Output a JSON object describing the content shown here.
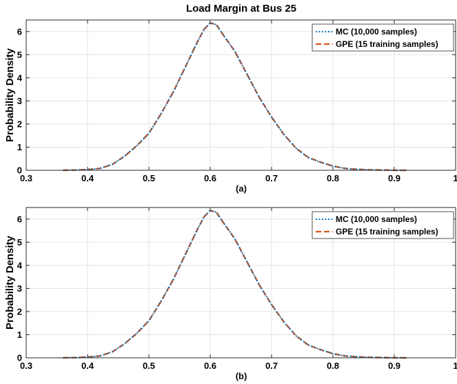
{
  "colors": {
    "mc": "#0072BD",
    "gpe": "#D95319",
    "grid": "#e3e3e3",
    "axis": "#262626"
  },
  "chart_data": [
    {
      "type": "line",
      "title": "Load Margin at Bus 25",
      "ylabel": "Probability Density",
      "xlabel": "(a)",
      "xlim": [
        0.3,
        1.0
      ],
      "ylim": [
        0,
        6.5
      ],
      "xticks": [
        "0.3",
        "0.4",
        "0.5",
        "0.6",
        "0.7",
        "0.8",
        "0.9",
        "1"
      ],
      "yticks": [
        "0",
        "1",
        "2",
        "3",
        "4",
        "5",
        "6"
      ],
      "grid": true,
      "legend_position": "top-right",
      "series": [
        {
          "name": "MC (10,000 samples)",
          "style": "dotted",
          "x": [
            0.36,
            0.38,
            0.4,
            0.42,
            0.44,
            0.46,
            0.48,
            0.5,
            0.52,
            0.54,
            0.56,
            0.58,
            0.59,
            0.6,
            0.61,
            0.62,
            0.64,
            0.66,
            0.68,
            0.7,
            0.72,
            0.74,
            0.76,
            0.78,
            0.8,
            0.82,
            0.84,
            0.86,
            0.88,
            0.9,
            0.92
          ],
          "y": [
            0.0,
            0.01,
            0.03,
            0.08,
            0.25,
            0.6,
            1.05,
            1.6,
            2.45,
            3.4,
            4.5,
            5.6,
            6.1,
            6.37,
            6.3,
            5.9,
            5.15,
            4.15,
            3.15,
            2.3,
            1.55,
            0.95,
            0.55,
            0.35,
            0.18,
            0.08,
            0.04,
            0.02,
            0.01,
            0.0,
            0.0
          ]
        },
        {
          "name": "GPE (15 training samples)",
          "style": "dashed",
          "x": [
            0.36,
            0.38,
            0.4,
            0.42,
            0.44,
            0.46,
            0.48,
            0.5,
            0.52,
            0.54,
            0.56,
            0.58,
            0.59,
            0.6,
            0.61,
            0.62,
            0.64,
            0.66,
            0.68,
            0.7,
            0.72,
            0.74,
            0.76,
            0.78,
            0.8,
            0.82,
            0.84,
            0.86,
            0.88,
            0.9,
            0.92
          ],
          "y": [
            0.0,
            0.01,
            0.03,
            0.08,
            0.25,
            0.6,
            1.05,
            1.6,
            2.45,
            3.4,
            4.5,
            5.6,
            6.1,
            6.37,
            6.3,
            5.9,
            5.15,
            4.15,
            3.15,
            2.3,
            1.55,
            0.95,
            0.55,
            0.35,
            0.18,
            0.08,
            0.04,
            0.02,
            0.01,
            0.0,
            0.0
          ]
        }
      ]
    },
    {
      "type": "line",
      "title": "",
      "ylabel": "Probability Density",
      "xlabel": "(b)",
      "xlim": [
        0.3,
        1.0
      ],
      "ylim": [
        0,
        6.5
      ],
      "xticks": [
        "0.3",
        "0.4",
        "0.5",
        "0.6",
        "0.7",
        "0.8",
        "0.9",
        "1"
      ],
      "yticks": [
        "0",
        "1",
        "2",
        "3",
        "4",
        "5",
        "6"
      ],
      "grid": true,
      "legend_position": "top-right",
      "series": [
        {
          "name": "MC (10,000 samples)",
          "style": "dotted",
          "x": [
            0.36,
            0.38,
            0.4,
            0.42,
            0.44,
            0.46,
            0.48,
            0.5,
            0.52,
            0.54,
            0.56,
            0.58,
            0.59,
            0.6,
            0.61,
            0.62,
            0.64,
            0.66,
            0.68,
            0.7,
            0.72,
            0.74,
            0.76,
            0.78,
            0.8,
            0.82,
            0.84,
            0.86,
            0.88,
            0.9,
            0.92
          ],
          "y": [
            0.0,
            0.01,
            0.03,
            0.08,
            0.25,
            0.6,
            1.05,
            1.6,
            2.45,
            3.4,
            4.5,
            5.6,
            6.1,
            6.37,
            6.3,
            5.9,
            5.15,
            4.15,
            3.15,
            2.3,
            1.55,
            0.95,
            0.55,
            0.35,
            0.18,
            0.08,
            0.04,
            0.02,
            0.01,
            0.0,
            0.0
          ]
        },
        {
          "name": "GPE (15 training samples)",
          "style": "dashed",
          "x": [
            0.36,
            0.38,
            0.4,
            0.42,
            0.44,
            0.46,
            0.48,
            0.5,
            0.52,
            0.54,
            0.56,
            0.58,
            0.59,
            0.6,
            0.61,
            0.62,
            0.64,
            0.66,
            0.68,
            0.7,
            0.72,
            0.74,
            0.76,
            0.78,
            0.8,
            0.82,
            0.84,
            0.86,
            0.88,
            0.9,
            0.92
          ],
          "y": [
            0.0,
            0.01,
            0.03,
            0.08,
            0.25,
            0.6,
            1.05,
            1.6,
            2.45,
            3.4,
            4.5,
            5.6,
            6.1,
            6.37,
            6.3,
            5.9,
            5.15,
            4.15,
            3.15,
            2.3,
            1.55,
            0.95,
            0.55,
            0.35,
            0.18,
            0.08,
            0.04,
            0.02,
            0.01,
            0.0,
            0.0
          ]
        }
      ]
    }
  ]
}
